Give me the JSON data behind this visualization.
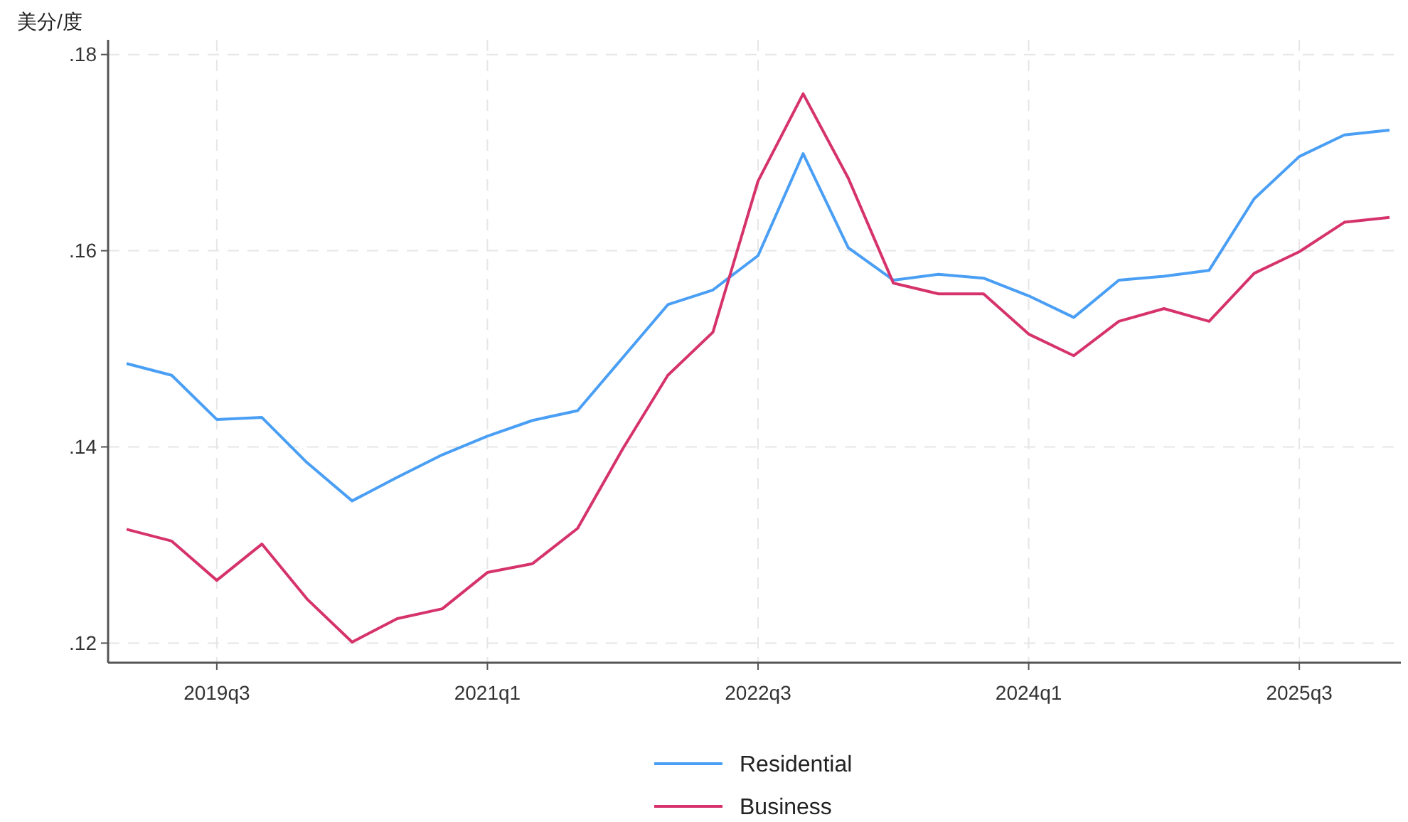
{
  "chart_data": {
    "type": "line",
    "ylabel": "美分/度",
    "categories": [
      null,
      null,
      "2019q3",
      null,
      null,
      null,
      null,
      null,
      "2021q1",
      null,
      null,
      null,
      null,
      null,
      "2022q3",
      null,
      null,
      null,
      null,
      null,
      "2024q1",
      null,
      null,
      null,
      null,
      null,
      "2025q3",
      null,
      null
    ],
    "series": [
      {
        "name": "Residential",
        "color": "#4a9ff5",
        "values": [
          0.1485,
          0.1473,
          0.1428,
          0.143,
          0.1384,
          0.1345,
          0.1369,
          0.1392,
          0.1411,
          0.1427,
          0.1437,
          0.1491,
          0.1545,
          0.156,
          0.1595,
          0.1699,
          0.1603,
          0.157,
          0.1576,
          0.1572,
          0.1554,
          0.1532,
          0.157,
          0.1574,
          0.158,
          0.1653,
          0.1696,
          0.1718,
          0.1723
        ]
      },
      {
        "name": "Business",
        "color": "#d6336c",
        "values": [
          0.1316,
          0.1304,
          0.1264,
          0.1301,
          0.1245,
          0.1201,
          0.1225,
          0.1235,
          0.1272,
          0.1281,
          0.1317,
          0.1398,
          0.1473,
          0.1517,
          0.1671,
          0.176,
          0.1674,
          0.1567,
          0.1556,
          0.1556,
          0.1515,
          0.1493,
          0.1528,
          0.1541,
          0.1528,
          0.1577,
          0.1599,
          0.1629,
          0.1634
        ]
      }
    ],
    "ylim": [
      0.118,
      0.1815
    ],
    "yticks": [
      {
        "value": 0.12,
        "label": ".12"
      },
      {
        "value": 0.14,
        "label": ".14"
      },
      {
        "value": 0.16,
        "label": ".16"
      },
      {
        "value": 0.18,
        "label": ".18"
      }
    ],
    "grid": true,
    "legend": "bottom",
    "line_style": "solid",
    "marker": "none"
  }
}
